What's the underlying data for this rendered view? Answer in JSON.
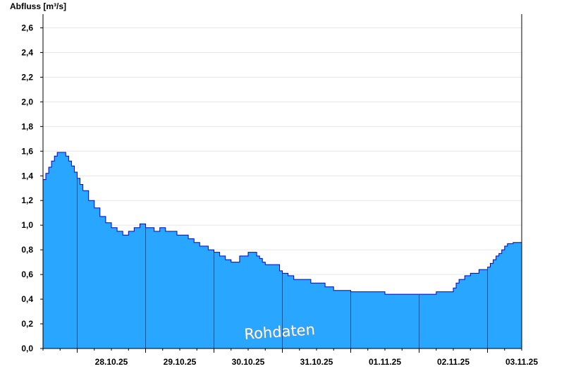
{
  "chart_data": {
    "type": "area",
    "ylabel": "Abfluss [m³/s]",
    "ylim": [
      0,
      2.7
    ],
    "y_ticks": [
      "0,0",
      "0,2",
      "0,4",
      "0,6",
      "0,8",
      "1,0",
      "1,2",
      "1,4",
      "1,6",
      "1,8",
      "2,0",
      "2,2",
      "2,4",
      "2,6"
    ],
    "x_range": [
      "27.10.25 12:00",
      "03.11.25 12:00"
    ],
    "x_tick_labels": [
      "28.10.25",
      "29.10.25",
      "30.10.25",
      "31.10.25",
      "01.11.25",
      "02.11.25",
      "03.11.25"
    ],
    "grid": "horizontal",
    "legend": "none",
    "watermark": "Rohdaten",
    "colors": {
      "fill": "#29a6ff",
      "line": "#0000cc",
      "day_separator": "#1c4f8a",
      "grid": "#e6e6e6",
      "axis": "#000000"
    },
    "x": [
      "27.10.25 12:00",
      "27.10.25 13:00",
      "27.10.25 14:00",
      "27.10.25 15:00",
      "27.10.25 16:00",
      "27.10.25 17:00",
      "27.10.25 18:00",
      "27.10.25 19:00",
      "27.10.25 20:00",
      "27.10.25 21:00",
      "27.10.25 22:00",
      "27.10.25 23:00",
      "28.10.25 00:00",
      "28.10.25 01:00",
      "28.10.25 02:00",
      "28.10.25 04:00",
      "28.10.25 06:00",
      "28.10.25 08:00",
      "28.10.25 10:00",
      "28.10.25 12:00",
      "28.10.25 14:00",
      "28.10.25 16:00",
      "28.10.25 18:00",
      "28.10.25 20:00",
      "28.10.25 22:00",
      "29.10.25 00:00",
      "29.10.25 03:00",
      "29.10.25 05:00",
      "29.10.25 07:00",
      "29.10.25 11:00",
      "29.10.25 15:00",
      "29.10.25 17:00",
      "29.10.25 19:00",
      "29.10.25 22:00",
      "30.10.25 00:00",
      "30.10.25 02:00",
      "30.10.25 04:00",
      "30.10.25 06:00",
      "30.10.25 09:00",
      "30.10.25 12:00",
      "30.10.25 15:00",
      "30.10.25 16:00",
      "30.10.25 17:00",
      "30.10.25 18:00",
      "30.10.25 23:00",
      "31.10.25 00:00",
      "31.10.25 02:00",
      "31.10.25 04:00",
      "31.10.25 06:00",
      "31.10.25 08:00",
      "31.10.25 10:00",
      "31.10.25 12:00",
      "31.10.25 15:00",
      "31.10.25 18:00",
      "01.11.25 00:00",
      "01.11.25 05:00",
      "01.11.25 08:00",
      "01.11.25 12:00",
      "02.11.25 00:00",
      "02.11.25 05:00",
      "02.11.25 06:00",
      "02.11.25 11:00",
      "02.11.25 12:00",
      "02.11.25 13:00",
      "02.11.25 14:00",
      "02.11.25 16:00",
      "02.11.25 18:00",
      "02.11.25 21:00",
      "03.11.25 00:00",
      "03.11.25 01:00",
      "03.11.25 02:00",
      "03.11.25 03:00",
      "03.11.25 04:00",
      "03.11.25 05:00",
      "03.11.25 06:00",
      "03.11.25 07:00",
      "03.11.25 09:00",
      "03.11.25 12:00"
    ],
    "y": [
      1.37,
      1.42,
      1.47,
      1.52,
      1.56,
      1.59,
      1.59,
      1.59,
      1.56,
      1.52,
      1.48,
      1.43,
      1.38,
      1.33,
      1.28,
      1.2,
      1.14,
      1.07,
      1.02,
      0.98,
      0.95,
      0.92,
      0.95,
      0.98,
      1.01,
      0.98,
      0.95,
      0.98,
      0.95,
      0.92,
      0.89,
      0.86,
      0.83,
      0.8,
      0.78,
      0.75,
      0.72,
      0.7,
      0.75,
      0.78,
      0.75,
      0.73,
      0.7,
      0.68,
      0.63,
      0.61,
      0.59,
      0.56,
      0.56,
      0.56,
      0.53,
      0.53,
      0.5,
      0.47,
      0.46,
      0.46,
      0.46,
      0.44,
      0.44,
      0.44,
      0.46,
      0.46,
      0.49,
      0.53,
      0.56,
      0.59,
      0.61,
      0.64,
      0.66,
      0.69,
      0.72,
      0.75,
      0.77,
      0.8,
      0.83,
      0.85,
      0.86,
      0.83
    ]
  }
}
